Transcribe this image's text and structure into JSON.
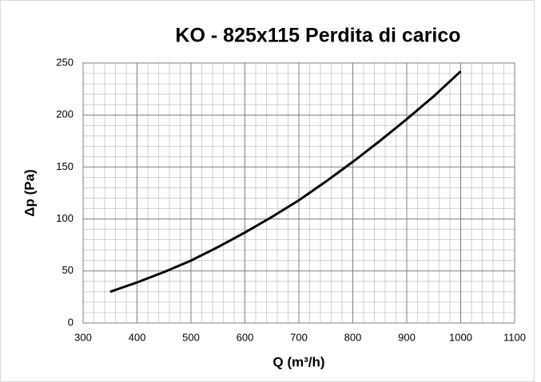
{
  "chart_data": {
    "type": "line",
    "title": "KO - 825x115 Perdita di carico",
    "x_label": "Q (m³/h)",
    "y_label": "Δp (Pa)",
    "x": [
      350,
      400,
      450,
      500,
      550,
      600,
      650,
      700,
      750,
      800,
      850,
      900,
      950,
      1000
    ],
    "series": [
      {
        "name": "Δp",
        "color": "#000000",
        "values": [
          30,
          39,
          49,
          60,
          73,
          87,
          102,
          118,
          136,
          155,
          175,
          196,
          218,
          242
        ]
      }
    ],
    "xlim": [
      300,
      1100
    ],
    "xticks": [
      300,
      400,
      500,
      600,
      700,
      800,
      900,
      1000,
      1100
    ],
    "ylim": [
      0,
      250
    ],
    "yticks": [
      0,
      50,
      100,
      150,
      200,
      250
    ],
    "grid": true
  }
}
